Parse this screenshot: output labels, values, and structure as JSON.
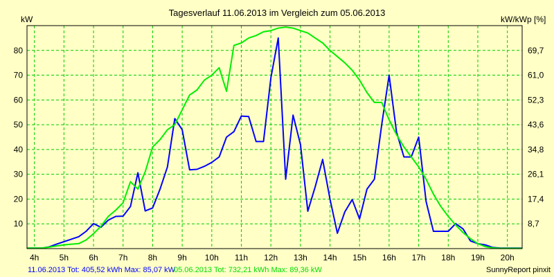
{
  "chart_data": {
    "type": "line",
    "title": "Tagesverlauf 11.06.2013 im Vergleich zum 05.06.2013",
    "ylabel_left": "kW",
    "ylabel_right": "kW/kWp [%]",
    "x_ticks": [
      "4h",
      "5h",
      "6h",
      "7h",
      "8h",
      "9h",
      "10h",
      "11h",
      "12h",
      "13h",
      "14h",
      "15h",
      "16h",
      "17h",
      "18h",
      "19h",
      "20h"
    ],
    "x_range": [
      3.75,
      20.5
    ],
    "y_ticks_left": [
      "10",
      "20",
      "30",
      "40",
      "50",
      "60",
      "70",
      "80"
    ],
    "y_ticks_left_values": [
      10,
      20,
      30,
      40,
      50,
      60,
      70,
      80
    ],
    "y_ticks_right": [
      "8,7",
      "17,4",
      "26,1",
      "34,8",
      "43,6",
      "52,3",
      "61,0",
      "69,7"
    ],
    "ylim": [
      0,
      90
    ],
    "grid": true,
    "series": [
      {
        "name": "11.06.2013",
        "color": "#0000ff",
        "x": [
          3.75,
          4.25,
          4.5,
          4.75,
          5.0,
          5.25,
          5.5,
          5.75,
          6.0,
          6.25,
          6.5,
          6.75,
          7.0,
          7.25,
          7.5,
          7.75,
          8.0,
          8.25,
          8.5,
          8.75,
          9.0,
          9.25,
          9.5,
          9.75,
          10.0,
          10.25,
          10.5,
          10.75,
          11.0,
          11.25,
          11.5,
          11.75,
          12.0,
          12.25,
          12.5,
          12.75,
          13.0,
          13.25,
          13.5,
          13.75,
          14.0,
          14.25,
          14.5,
          14.75,
          15.0,
          15.25,
          15.5,
          15.75,
          16.0,
          16.25,
          16.5,
          16.75,
          17.0,
          17.25,
          17.5,
          17.75,
          18.0,
          18.25,
          18.5,
          18.75,
          19.0,
          19.25,
          19.5,
          19.75,
          20.0,
          20.5
        ],
        "values": [
          0.2,
          0.2,
          0.7,
          1.8,
          2.8,
          3.8,
          4.8,
          7.0,
          10.1,
          8.6,
          11.5,
          13.0,
          13.1,
          17.0,
          30.6,
          15.2,
          16.4,
          24.0,
          33.0,
          52.5,
          48.0,
          31.8,
          32.0,
          33.2,
          34.8,
          37.0,
          45.0,
          47.2,
          53.5,
          53.3,
          43.2,
          43.2,
          69.0,
          85.0,
          28.0,
          53.9,
          42.0,
          15.1,
          25.0,
          36.0,
          20.0,
          6.2,
          14.8,
          19.8,
          12.0,
          24.0,
          28.0,
          50.0,
          70.0,
          47.0,
          37.0,
          37.0,
          45.0,
          19.0,
          7.0,
          7.0,
          7.0,
          10.1,
          8.0,
          3.1,
          2.0,
          1.5,
          0.5,
          0.2,
          0.2,
          0.2
        ]
      },
      {
        "name": "05.06.2013",
        "color": "#00ee00",
        "x": [
          3.75,
          4.25,
          4.5,
          4.75,
          5.0,
          5.25,
          5.5,
          5.75,
          6.0,
          6.25,
          6.5,
          6.75,
          7.0,
          7.25,
          7.5,
          7.75,
          8.0,
          8.25,
          8.5,
          8.75,
          9.0,
          9.25,
          9.5,
          9.75,
          10.0,
          10.25,
          10.5,
          10.75,
          11.0,
          11.25,
          11.5,
          11.75,
          12.0,
          12.25,
          12.5,
          12.75,
          13.0,
          13.25,
          13.5,
          13.75,
          14.0,
          14.25,
          14.5,
          14.75,
          15.0,
          15.25,
          15.5,
          15.75,
          16.0,
          16.25,
          16.5,
          16.75,
          17.0,
          17.25,
          17.5,
          17.75,
          18.0,
          18.25,
          18.5,
          18.75,
          19.0,
          19.25,
          19.5,
          19.75,
          20.0,
          20.5
        ],
        "values": [
          0.2,
          0.2,
          0.6,
          1.1,
          1.5,
          1.8,
          2.0,
          3.5,
          6.0,
          9.0,
          13.0,
          15.5,
          18.5,
          27.0,
          24.0,
          31.0,
          41.0,
          44.0,
          48.0,
          50.0,
          56.0,
          62.0,
          64.0,
          68.0,
          70.0,
          73.0,
          63.5,
          82.0,
          83.0,
          85.0,
          86.0,
          87.5,
          88.0,
          89.0,
          89.4,
          89.0,
          88.0,
          87.0,
          85.0,
          83.0,
          80.0,
          77.5,
          75.0,
          72.0,
          68.0,
          63.0,
          59.0,
          59.0,
          52.0,
          46.0,
          41.0,
          37.0,
          33.0,
          28.0,
          22.0,
          17.0,
          13.0,
          9.5,
          6.5,
          4.0,
          2.0,
          0.8,
          0.3,
          0.1,
          0.1,
          0.1
        ]
      }
    ]
  },
  "footer": {
    "legend_1_text": "11.06.2013 Tot: 405,52 kWh Max: 85,07 kW",
    "legend_1_color": "#0000ff",
    "legend_2_text": "05.06.2013 Tot: 732,21 kWh Max: 89,36 kW",
    "legend_2_color": "#00dd00",
    "credit": "SunnyReport pinxit"
  },
  "colors": {
    "background": "#ffffc6",
    "plot_background": "#ffffc6",
    "grid": "#00cc00",
    "axis": "#000000"
  }
}
